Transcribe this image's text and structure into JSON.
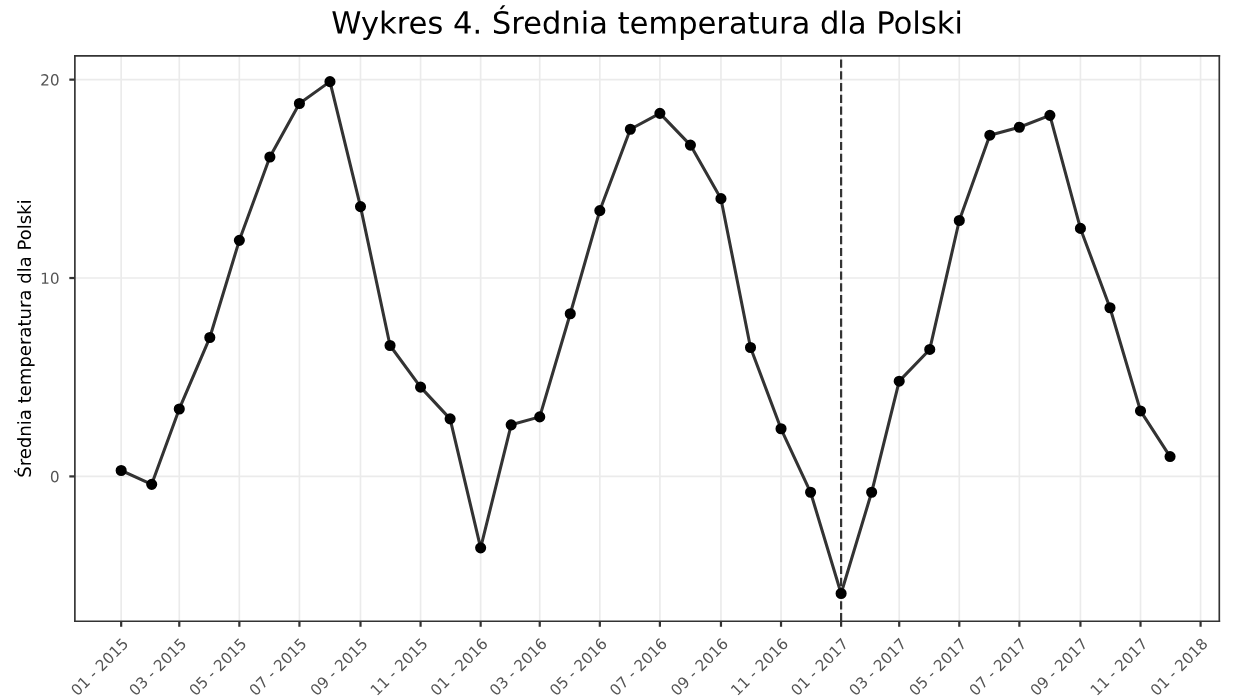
{
  "chart_data": {
    "type": "line",
    "title": "Wykres 4. Średnia temperatura dla Polski",
    "ylabel": "Średnia temperatura dla Polski",
    "x": [
      "2015-01",
      "2015-02",
      "2015-03",
      "2015-04",
      "2015-05",
      "2015-06",
      "2015-07",
      "2015-08",
      "2015-09",
      "2015-10",
      "2015-11",
      "2015-12",
      "2016-01",
      "2016-02",
      "2016-03",
      "2016-04",
      "2016-05",
      "2016-06",
      "2016-07",
      "2016-08",
      "2016-09",
      "2016-10",
      "2016-11",
      "2016-12",
      "2017-01",
      "2017-02",
      "2017-03",
      "2017-04",
      "2017-05",
      "2017-06",
      "2017-07",
      "2017-08",
      "2017-09",
      "2017-10",
      "2017-11",
      "2017-12"
    ],
    "series": [
      {
        "color": "#333333",
        "values": [
          0.3,
          -0.4,
          3.4,
          7.0,
          11.9,
          16.1,
          18.8,
          19.9,
          13.6,
          6.6,
          4.5,
          2.9,
          -3.6,
          2.6,
          3.0,
          8.2,
          13.4,
          17.5,
          18.3,
          16.7,
          14.0,
          6.5,
          2.4,
          -0.8,
          -5.9,
          -0.8,
          4.8,
          6.4,
          12.9,
          17.2,
          17.6,
          18.2,
          12.5,
          8.5,
          3.3,
          1.0
        ]
      }
    ],
    "marker": "circle",
    "line_style": "solid",
    "grid": true,
    "legend": false,
    "ylim": [
      -7.3,
      21.2
    ],
    "yticks": [
      0,
      10,
      20
    ],
    "xlim": [
      "2014-11-15",
      "2018-01-20"
    ],
    "xticks": [
      {
        "value": "2015-01",
        "label": "01 - 2015"
      },
      {
        "value": "2015-03",
        "label": "03 - 2015"
      },
      {
        "value": "2015-05",
        "label": "05 - 2015"
      },
      {
        "value": "2015-07",
        "label": "07 - 2015"
      },
      {
        "value": "2015-09",
        "label": "09 - 2015"
      },
      {
        "value": "2015-11",
        "label": "11 - 2015"
      },
      {
        "value": "2016-01",
        "label": "01 - 2016"
      },
      {
        "value": "2016-03",
        "label": "03 - 2016"
      },
      {
        "value": "2016-05",
        "label": "05 - 2016"
      },
      {
        "value": "2016-07",
        "label": "07 - 2016"
      },
      {
        "value": "2016-09",
        "label": "09 - 2016"
      },
      {
        "value": "2016-11",
        "label": "11 - 2016"
      },
      {
        "value": "2017-01",
        "label": "01 - 2017"
      },
      {
        "value": "2017-03",
        "label": "03 - 2017"
      },
      {
        "value": "2017-05",
        "label": "05 - 2017"
      },
      {
        "value": "2017-07",
        "label": "07 - 2017"
      },
      {
        "value": "2017-09",
        "label": "09 - 2017"
      },
      {
        "value": "2017-11",
        "label": "11 - 2017"
      },
      {
        "value": "2018-01",
        "label": "01 - 2018"
      }
    ],
    "ref_lines": [
      {
        "axis": "x",
        "value": "2017-01",
        "color": "#333333",
        "line_style": "dashed"
      }
    ]
  }
}
